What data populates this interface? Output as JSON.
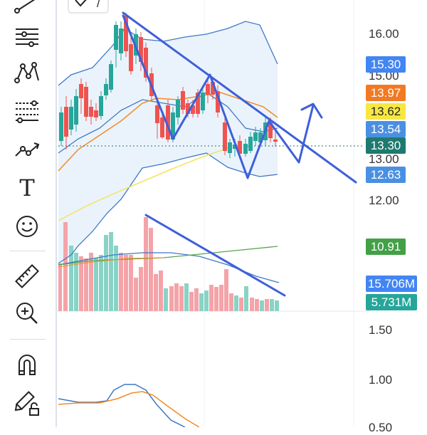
{
  "toolbar": {
    "items": [
      {
        "name": "trend-line-tool-icon"
      },
      {
        "name": "horizontal-lines-tool-icon"
      },
      {
        "name": "pattern-tool-icon"
      },
      {
        "name": "fib-retracement-tool-icon"
      },
      {
        "name": "forecast-tool-icon"
      },
      {
        "name": "text-tool-icon"
      },
      {
        "name": "emoji-tool-icon"
      },
      {
        "name": "ruler-tool-icon"
      },
      {
        "name": "zoom-in-tool-icon"
      },
      {
        "name": "magnet-tool-icon"
      },
      {
        "name": "lock-drawing-tool-icon"
      }
    ],
    "text_tool_glyph": "T"
  },
  "top_indicator": {
    "label": "/"
  },
  "price_axis": {
    "ticks": [
      "16.00",
      "15.00",
      "13.00",
      "12.00"
    ]
  },
  "price_labels": [
    {
      "value": "15.30",
      "bg": "#4285f4",
      "fg": "#ffffff"
    },
    {
      "value": "13.97",
      "bg": "#f27a22",
      "fg": "#ffffff"
    },
    {
      "value": "13.62",
      "bg": "#f7e742",
      "fg": "#222222"
    },
    {
      "value": "13.54",
      "bg": "#4a90e2",
      "fg": "#ffffff"
    },
    {
      "value": "13.30",
      "bg": "#1e7a6e",
      "fg": "#ffffff"
    },
    {
      "value": "12.63",
      "bg": "#4a90e2",
      "fg": "#ffffff"
    }
  ],
  "volume_labels": [
    {
      "value": "10.91",
      "bg": "#43a047",
      "fg": "#ffffff"
    },
    {
      "value": "15.706M",
      "bg": "#4285f4",
      "fg": "#ffffff"
    },
    {
      "value": "5.731M",
      "bg": "#26a69a",
      "fg": "#ffffff"
    }
  ],
  "oscillator_axis": {
    "ticks": [
      "1.50",
      "1.00",
      "0.50"
    ]
  },
  "colors": {
    "up": "#26a69a",
    "down": "#ef5350",
    "trendline": "#3f5fd9",
    "bollinger": "#3f78c8",
    "orange_ma": "#f28c28",
    "yellow_ma": "#f3e45a",
    "volume_up": "#89d3c6",
    "volume_down": "#f4a3a8",
    "green_line": "#5aa454"
  }
}
